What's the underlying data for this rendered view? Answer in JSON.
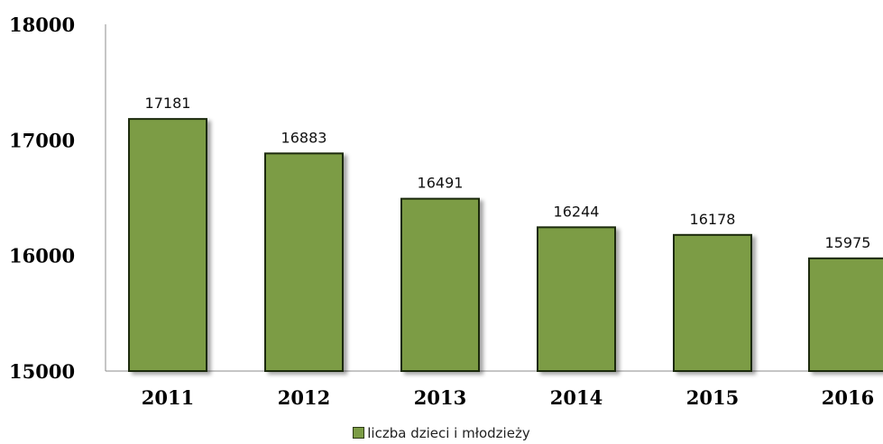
{
  "chart_data": {
    "type": "bar",
    "categories": [
      "2011",
      "2012",
      "2013",
      "2014",
      "2015",
      "2016"
    ],
    "series": [
      {
        "name": "liczba dzieci i młodzieży",
        "values": [
          17181,
          16883,
          16491,
          16244,
          16178,
          15975
        ]
      }
    ],
    "data_labels": [
      "17181",
      "16883",
      "16491",
      "16244",
      "16178",
      "15975"
    ],
    "y_ticks": [
      "15000",
      "16000",
      "17000",
      "18000"
    ],
    "ylim": [
      15000,
      18000
    ],
    "grid": false,
    "legend_position": "bottom",
    "colors": {
      "bar_fill": "#7b9c45",
      "bar_stroke": "#1f2a0e"
    }
  },
  "legend": {
    "label": "liczba dzieci i młodzieży"
  }
}
